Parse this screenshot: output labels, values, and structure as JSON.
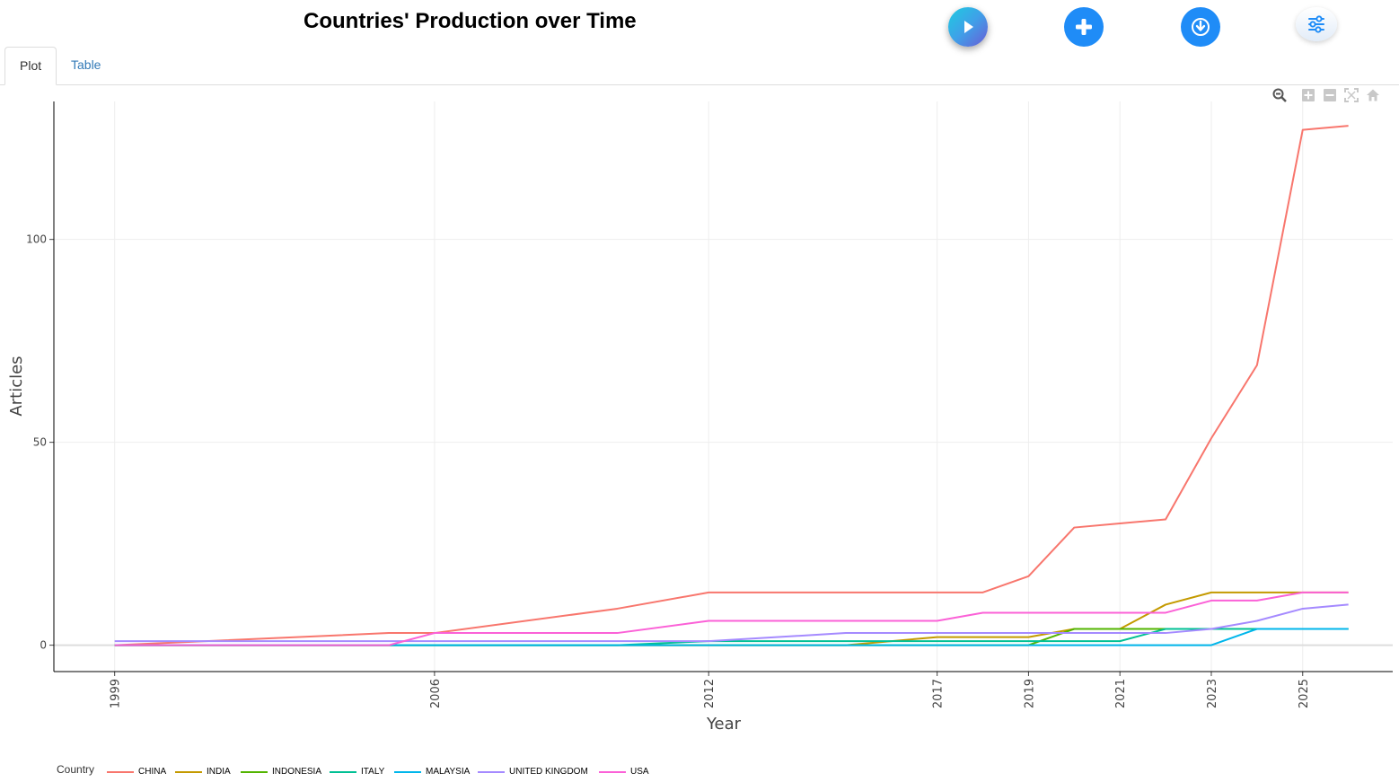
{
  "header": {
    "title": "Countries' Production over Time",
    "buttons": [
      {
        "name": "play-button",
        "icon": "play-icon",
        "color": "#1f8cf7"
      },
      {
        "name": "add-button",
        "icon": "plus-icon",
        "color": "#1f8cf7"
      },
      {
        "name": "download-button",
        "icon": "download-icon",
        "color": "#1f8cf7"
      },
      {
        "name": "settings-button",
        "icon": "sliders-icon",
        "color": "#1f8cf7"
      }
    ]
  },
  "tabs": [
    {
      "label": "Plot",
      "active": true
    },
    {
      "label": "Table",
      "active": false
    }
  ],
  "modebar": [
    "zoom-icon",
    "zoom-in-icon",
    "zoom-out-icon",
    "autoscale-icon",
    "reset-home-icon"
  ],
  "chart_data": {
    "type": "line",
    "title": "",
    "xlabel": "Year",
    "ylabel": "Articles",
    "xlim": [
      1997.67,
      2026.97
    ],
    "ylim": [
      -6.5,
      134
    ],
    "x_ticks": [
      "1999",
      "2006",
      "2012",
      "2017",
      "2019",
      "2021",
      "2023",
      "2025"
    ],
    "y_ticks": [
      0,
      50,
      100
    ],
    "grid": true,
    "legend_title": "Country",
    "legend_position": "bottom",
    "series": [
      {
        "name": "CHINA",
        "color": "#f8766d",
        "x": [
          1999,
          2005,
          2006,
          2010,
          2012,
          2018,
          2019,
          2020,
          2021,
          2022,
          2023,
          2024,
          2025,
          2026
        ],
        "y": [
          0,
          3,
          3,
          9,
          13,
          13,
          17,
          29,
          30,
          31,
          51,
          69,
          127,
          128
        ]
      },
      {
        "name": "INDIA",
        "color": "#c49a00",
        "x": [
          1999,
          2015,
          2017,
          2019,
          2020,
          2021,
          2022,
          2023,
          2026
        ],
        "y": [
          0,
          0,
          2,
          2,
          4,
          4,
          10,
          13,
          13
        ]
      },
      {
        "name": "INDONESIA",
        "color": "#53b400",
        "x": [
          1999,
          2019,
          2020,
          2026
        ],
        "y": [
          0,
          0,
          4,
          4
        ]
      },
      {
        "name": "ITALY",
        "color": "#00c094",
        "x": [
          1999,
          2010,
          2012,
          2021,
          2022,
          2026
        ],
        "y": [
          0,
          0,
          1,
          1,
          4,
          4
        ]
      },
      {
        "name": "MALAYSIA",
        "color": "#00b6eb",
        "x": [
          1999,
          2023,
          2024,
          2026
        ],
        "y": [
          0,
          0,
          4,
          4
        ]
      },
      {
        "name": "UNITED KINGDOM",
        "color": "#a58aff",
        "x": [
          1999,
          2012,
          2015,
          2022,
          2023,
          2024,
          2025,
          2026
        ],
        "y": [
          1,
          1,
          3,
          3,
          4,
          6,
          9,
          10
        ]
      },
      {
        "name": "USA",
        "color": "#fb61d7",
        "x": [
          1999,
          2005,
          2006,
          2010,
          2012,
          2017,
          2018,
          2022,
          2023,
          2024,
          2025,
          2026
        ],
        "y": [
          0,
          0,
          3,
          3,
          6,
          6,
          8,
          8,
          11,
          11,
          13,
          13
        ]
      }
    ]
  }
}
